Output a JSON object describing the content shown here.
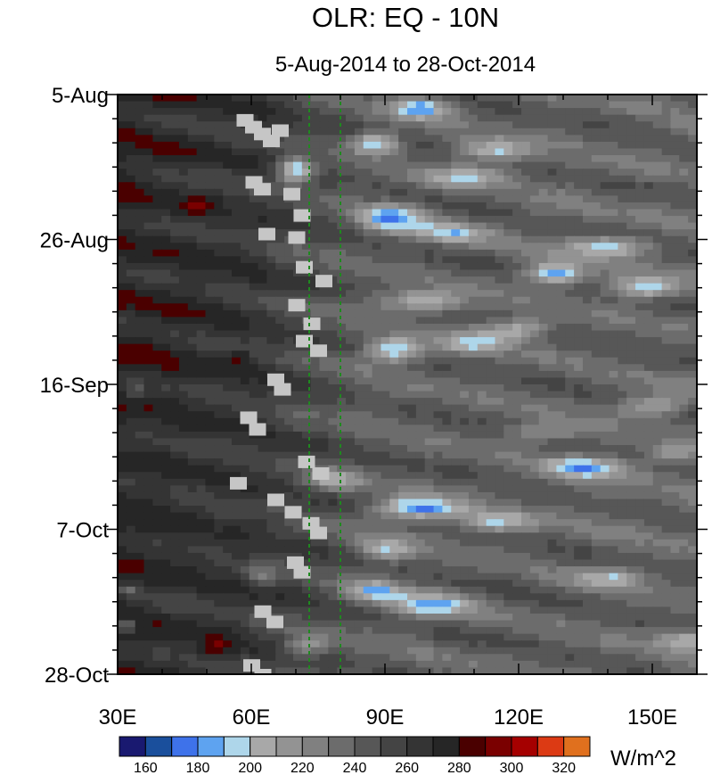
{
  "chart_data": {
    "type": "heatmap",
    "title": "OLR: EQ - 10N",
    "subtitle": "5-Aug-2014 to 28-Oct-2014",
    "x_ticks": [
      "30E",
      "60E",
      "90E",
      "120E",
      "150E"
    ],
    "x_tick_values": [
      30,
      60,
      90,
      120,
      150
    ],
    "xlim": [
      30,
      160
    ],
    "y_ticks": [
      "5-Aug",
      "26-Aug",
      "16-Sep",
      "7-Oct",
      "28-Oct"
    ],
    "y_tick_days": [
      0,
      21,
      42,
      63,
      84
    ],
    "ylim_days": [
      0,
      84
    ],
    "reference_lines_lon": [
      73,
      80
    ],
    "colorbar": {
      "units": "W/m^2",
      "levels": [
        160,
        170,
        180,
        190,
        200,
        210,
        220,
        230,
        240,
        250,
        260,
        270,
        280,
        290,
        300,
        310,
        320
      ],
      "labels": [
        "160",
        "180",
        "200",
        "220",
        "240",
        "260",
        "280",
        "300",
        "320"
      ],
      "colors": [
        "#191970",
        "#1a4f9c",
        "#3e72ea",
        "#5ea3f0",
        "#aed6ea",
        "#a8a8a8",
        "#939393",
        "#808080",
        "#6c6c6c",
        "#575757",
        "#444444",
        "#343434",
        "#262626",
        "#4a0000",
        "#7a0000",
        "#a50000",
        "#dc3a14",
        "#e0701e"
      ]
    }
  }
}
